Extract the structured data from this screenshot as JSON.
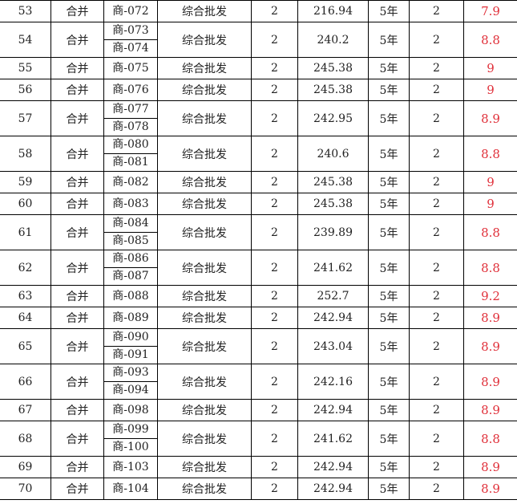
{
  "colors": {
    "score": "#e0303a",
    "text": "#222222",
    "border": "#000000"
  },
  "rows": [
    {
      "no": "53",
      "type": "合并",
      "units": [
        "商-072"
      ],
      "usage": "综合批发",
      "count": "2",
      "area": "216.94",
      "term": "5年",
      "qty": "2",
      "score": "7.9"
    },
    {
      "no": "54",
      "type": "合并",
      "units": [
        "商-073",
        "商-074"
      ],
      "usage": "综合批发",
      "count": "2",
      "area": "240.2",
      "term": "5年",
      "qty": "2",
      "score": "8.8"
    },
    {
      "no": "55",
      "type": "合并",
      "units": [
        "商-075"
      ],
      "usage": "综合批发",
      "count": "2",
      "area": "245.38",
      "term": "5年",
      "qty": "2",
      "score": "9"
    },
    {
      "no": "56",
      "type": "合并",
      "units": [
        "商-076"
      ],
      "usage": "综合批发",
      "count": "2",
      "area": "245.38",
      "term": "5年",
      "qty": "2",
      "score": "9"
    },
    {
      "no": "57",
      "type": "合并",
      "units": [
        "商-077",
        "商-078"
      ],
      "usage": "综合批发",
      "count": "2",
      "area": "242.95",
      "term": "5年",
      "qty": "2",
      "score": "8.9"
    },
    {
      "no": "58",
      "type": "合并",
      "units": [
        "商-080",
        "商-081"
      ],
      "usage": "综合批发",
      "count": "2",
      "area": "240.6",
      "term": "5年",
      "qty": "2",
      "score": "8.8"
    },
    {
      "no": "59",
      "type": "合并",
      "units": [
        "商-082"
      ],
      "usage": "综合批发",
      "count": "2",
      "area": "245.38",
      "term": "5年",
      "qty": "2",
      "score": "9"
    },
    {
      "no": "60",
      "type": "合并",
      "units": [
        "商-083"
      ],
      "usage": "综合批发",
      "count": "2",
      "area": "245.38",
      "term": "5年",
      "qty": "2",
      "score": "9"
    },
    {
      "no": "61",
      "type": "合并",
      "units": [
        "商-084",
        "商-085"
      ],
      "usage": "综合批发",
      "count": "2",
      "area": "239.89",
      "term": "5年",
      "qty": "2",
      "score": "8.8"
    },
    {
      "no": "62",
      "type": "合并",
      "units": [
        "商-086",
        "商-087"
      ],
      "usage": "综合批发",
      "count": "2",
      "area": "241.62",
      "term": "5年",
      "qty": "2",
      "score": "8.8"
    },
    {
      "no": "63",
      "type": "合并",
      "units": [
        "商-088"
      ],
      "usage": "综合批发",
      "count": "2",
      "area": "252.7",
      "term": "5年",
      "qty": "2",
      "score": "9.2"
    },
    {
      "no": "64",
      "type": "合并",
      "units": [
        "商-089"
      ],
      "usage": "综合批发",
      "count": "2",
      "area": "242.94",
      "term": "5年",
      "qty": "2",
      "score": "8.9"
    },
    {
      "no": "65",
      "type": "合并",
      "units": [
        "商-090",
        "商-091"
      ],
      "usage": "综合批发",
      "count": "2",
      "area": "243.04",
      "term": "5年",
      "qty": "2",
      "score": "8.9"
    },
    {
      "no": "66",
      "type": "合并",
      "units": [
        "商-093",
        "商-094"
      ],
      "usage": "综合批发",
      "count": "2",
      "area": "242.16",
      "term": "5年",
      "qty": "2",
      "score": "8.9"
    },
    {
      "no": "67",
      "type": "合并",
      "units": [
        "商-098"
      ],
      "usage": "综合批发",
      "count": "2",
      "area": "242.94",
      "term": "5年",
      "qty": "2",
      "score": "8.9"
    },
    {
      "no": "68",
      "type": "合并",
      "units": [
        "商-099",
        "商-100"
      ],
      "usage": "综合批发",
      "count": "2",
      "area": "241.62",
      "term": "5年",
      "qty": "2",
      "score": "8.8"
    },
    {
      "no": "69",
      "type": "合并",
      "units": [
        "商-103"
      ],
      "usage": "综合批发",
      "count": "2",
      "area": "242.94",
      "term": "5年",
      "qty": "2",
      "score": "8.9"
    },
    {
      "no": "70",
      "type": "合并",
      "units": [
        "商-104"
      ],
      "usage": "综合批发",
      "count": "2",
      "area": "242.94",
      "term": "5年",
      "qty": "2",
      "score": "8.9"
    }
  ]
}
